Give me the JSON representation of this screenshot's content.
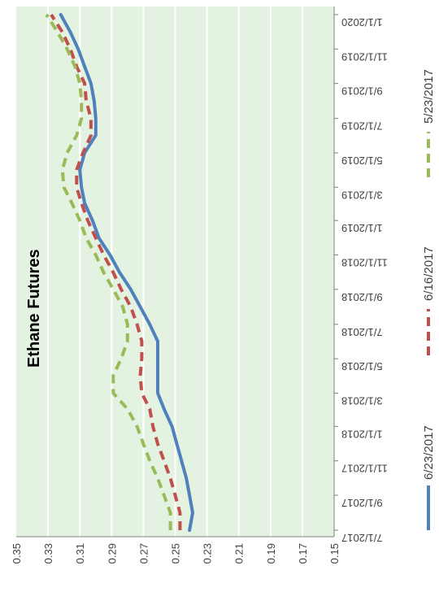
{
  "chart_data": {
    "type": "line",
    "title": "Ethane Futures",
    "xlabel": "",
    "ylabel": "",
    "orientation": "rotated-90-cw",
    "ylim": [
      0.15,
      0.35
    ],
    "y_ticks": [
      0.35,
      0.33,
      0.31,
      0.29,
      0.27,
      0.25,
      0.23,
      0.21,
      0.19,
      0.17,
      0.15
    ],
    "x_ticks": [
      "7/1/2017",
      "9/1/2017",
      "11/1/2017",
      "1/1/2018",
      "3/1/2018",
      "5/1/2018",
      "7/1/2018",
      "9/1/2018",
      "11/1/2018",
      "1/1/2019",
      "3/1/2019",
      "5/1/2019",
      "7/1/2019",
      "9/1/2019",
      "11/1/2019",
      "1/1/2020"
    ],
    "grid": true,
    "legend_position": "left",
    "background_color": "#e4f2e2",
    "series": [
      {
        "name": "6/23/2017",
        "color": "#4f81bd",
        "dash": "solid",
        "points": [
          [
            "2017-07-01",
            0.241
          ],
          [
            "2017-08-01",
            0.239
          ],
          [
            "2017-09-01",
            0.241
          ],
          [
            "2017-10-01",
            0.243
          ],
          [
            "2017-11-01",
            0.246
          ],
          [
            "2017-12-01",
            0.249
          ],
          [
            "2018-01-01",
            0.252
          ],
          [
            "2018-02-01",
            0.257
          ],
          [
            "2018-03-01",
            0.261
          ],
          [
            "2018-04-01",
            0.261
          ],
          [
            "2018-05-01",
            0.261
          ],
          [
            "2018-06-01",
            0.261
          ],
          [
            "2018-07-01",
            0.266
          ],
          [
            "2018-08-01",
            0.272
          ],
          [
            "2018-09-01",
            0.278
          ],
          [
            "2018-10-01",
            0.285
          ],
          [
            "2018-11-01",
            0.291
          ],
          [
            "2018-12-01",
            0.298
          ],
          [
            "2019-01-01",
            0.302
          ],
          [
            "2019-02-01",
            0.307
          ],
          [
            "2019-03-01",
            0.309
          ],
          [
            "2019-04-01",
            0.31
          ],
          [
            "2019-05-01",
            0.307
          ],
          [
            "2019-06-01",
            0.3
          ],
          [
            "2019-07-01",
            0.3
          ],
          [
            "2019-08-01",
            0.301
          ],
          [
            "2019-09-01",
            0.303
          ],
          [
            "2019-10-01",
            0.307
          ],
          [
            "2019-11-01",
            0.311
          ],
          [
            "2019-12-01",
            0.316
          ],
          [
            "2020-01-01",
            0.322
          ]
        ]
      },
      {
        "name": "6/16/2017",
        "color": "#c0504d",
        "dash": "dashed",
        "points": [
          [
            "2017-07-01",
            0.247
          ],
          [
            "2017-08-01",
            0.247
          ],
          [
            "2017-09-01",
            0.25
          ],
          [
            "2017-10-01",
            0.253
          ],
          [
            "2017-11-01",
            0.257
          ],
          [
            "2017-12-01",
            0.261
          ],
          [
            "2018-01-01",
            0.264
          ],
          [
            "2018-02-01",
            0.266
          ],
          [
            "2018-03-01",
            0.271
          ],
          [
            "2018-04-01",
            0.272
          ],
          [
            "2018-05-01",
            0.271
          ],
          [
            "2018-06-01",
            0.271
          ],
          [
            "2018-07-01",
            0.274
          ],
          [
            "2018-08-01",
            0.278
          ],
          [
            "2018-09-01",
            0.284
          ],
          [
            "2018-10-01",
            0.289
          ],
          [
            "2018-11-01",
            0.295
          ],
          [
            "2018-12-01",
            0.3
          ],
          [
            "2019-01-01",
            0.305
          ],
          [
            "2019-02-01",
            0.309
          ],
          [
            "2019-03-01",
            0.312
          ],
          [
            "2019-04-01",
            0.312
          ],
          [
            "2019-05-01",
            0.308
          ],
          [
            "2019-06-01",
            0.303
          ],
          [
            "2019-07-01",
            0.303
          ],
          [
            "2019-08-01",
            0.306
          ],
          [
            "2019-09-01",
            0.307
          ],
          [
            "2019-10-01",
            0.312
          ],
          [
            "2019-11-01",
            0.316
          ],
          [
            "2019-12-01",
            0.321
          ],
          [
            "2020-01-01",
            0.328
          ]
        ]
      },
      {
        "name": "5/23/2017",
        "color": "#9bbb59",
        "dash": "dashed",
        "points": [
          [
            "2017-07-01",
            0.253
          ],
          [
            "2017-08-01",
            0.253
          ],
          [
            "2017-09-01",
            0.257
          ],
          [
            "2017-10-01",
            0.261
          ],
          [
            "2017-11-01",
            0.266
          ],
          [
            "2017-12-01",
            0.27
          ],
          [
            "2018-01-01",
            0.274
          ],
          [
            "2018-02-01",
            0.28
          ],
          [
            "2018-03-01",
            0.289
          ],
          [
            "2018-04-01",
            0.289
          ],
          [
            "2018-05-01",
            0.284
          ],
          [
            "2018-06-01",
            0.28
          ],
          [
            "2018-07-01",
            0.28
          ],
          [
            "2018-08-01",
            0.283
          ],
          [
            "2018-09-01",
            0.289
          ],
          [
            "2018-10-01",
            0.295
          ],
          [
            "2018-11-01",
            0.3
          ],
          [
            "2018-12-01",
            0.306
          ],
          [
            "2019-01-01",
            0.31
          ],
          [
            "2019-02-01",
            0.315
          ],
          [
            "2019-03-01",
            0.32
          ],
          [
            "2019-04-01",
            0.321
          ],
          [
            "2019-05-01",
            0.318
          ],
          [
            "2019-06-01",
            0.312
          ],
          [
            "2019-07-01",
            0.309
          ],
          [
            "2019-08-01",
            0.309
          ],
          [
            "2019-09-01",
            0.31
          ],
          [
            "2019-10-01",
            0.313
          ],
          [
            "2019-11-01",
            0.318
          ],
          [
            "2019-12-01",
            0.324
          ],
          [
            "2020-01-01",
            0.331
          ]
        ]
      }
    ]
  }
}
